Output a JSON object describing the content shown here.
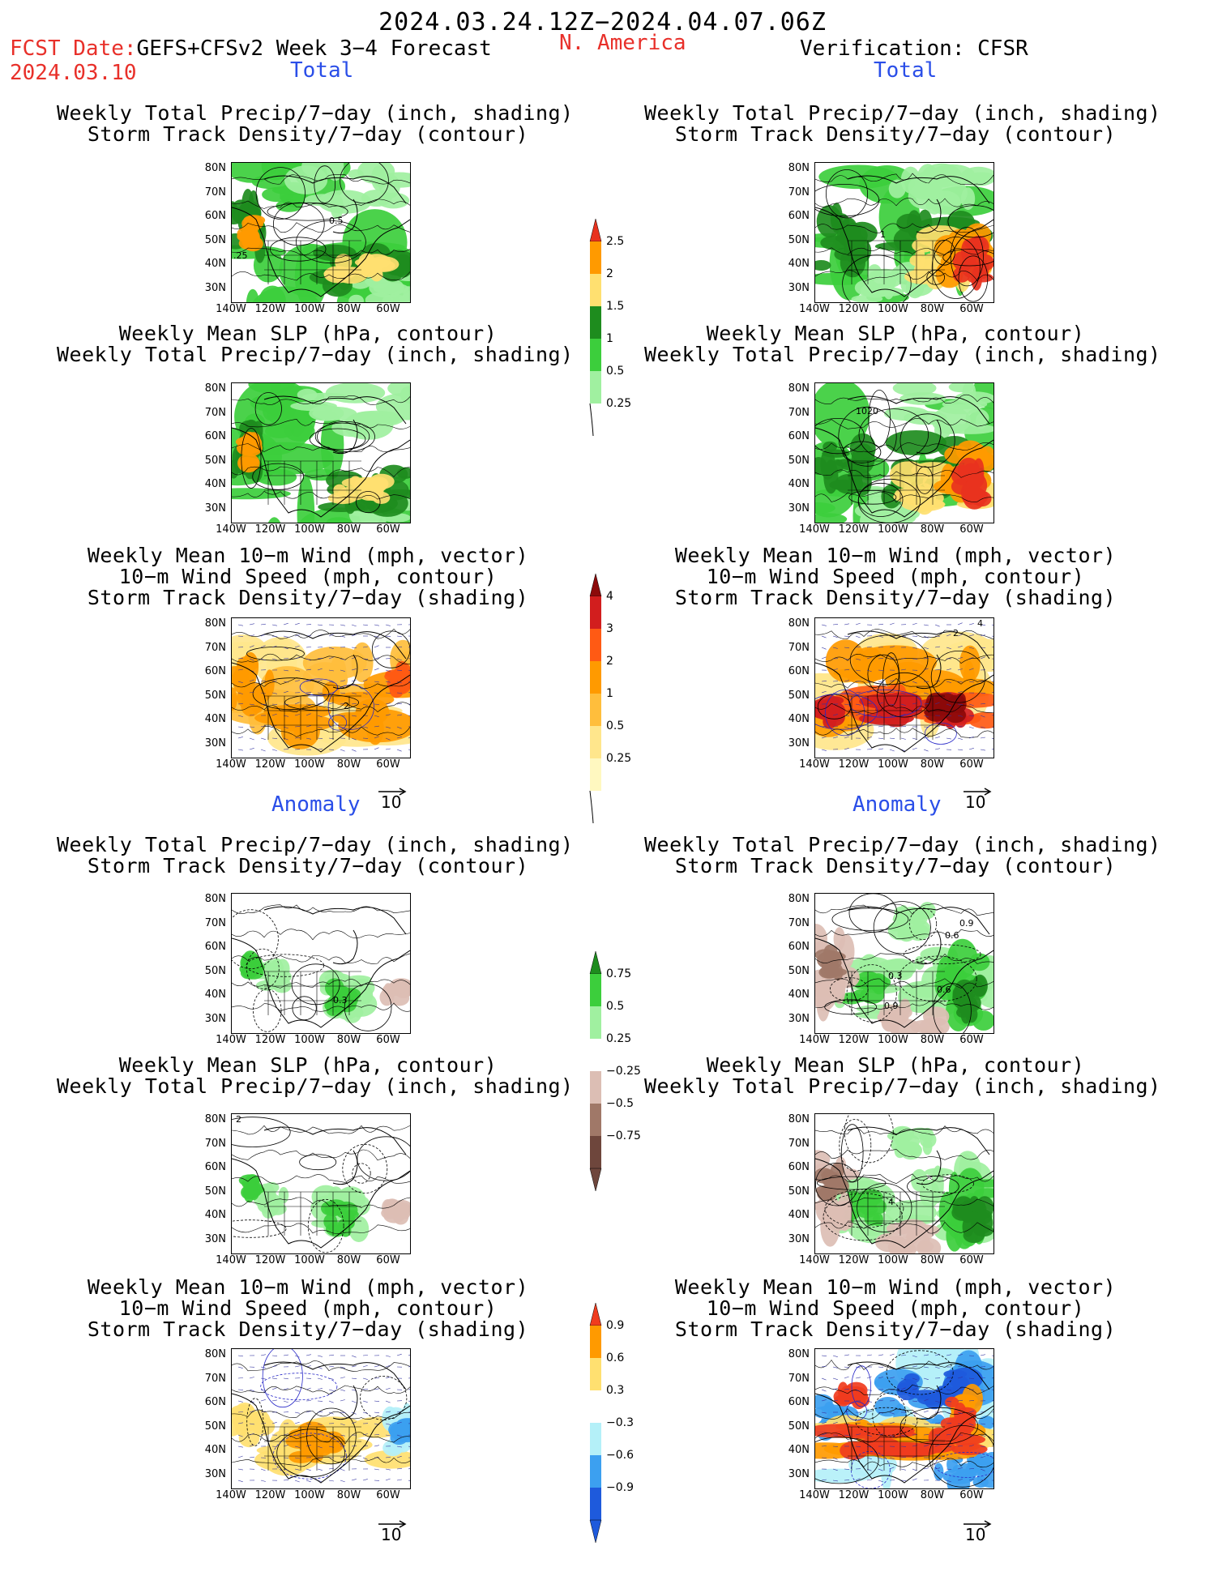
{
  "header": {
    "period": "2024.03.24.12Z−2024.04.07.06Z",
    "fcst_date_label": "FCST Date:",
    "fcst_date": "2024.03.10",
    "model_title": "GEFS+CFSv2 Week 3−4 Forecast",
    "region": "N. America",
    "verification": "Verification: CFSR"
  },
  "sections": {
    "total": "Total",
    "anomaly": "Anomaly"
  },
  "titles": {
    "precip_storm": [
      "Weekly Total Precip/7−day (inch, shading)",
      "Storm Track Density/7−day (contour)"
    ],
    "slp_precip": [
      "Weekly Mean SLP (hPa, contour)",
      "Weekly Total Precip/7−day (inch, shading)"
    ],
    "wind_storm": [
      "Weekly Mean 10−m Wind (mph, vector)",
      "10−m Wind Speed (mph, contour)",
      "Storm Track Density/7−day (shading)"
    ]
  },
  "axes": {
    "lat_ticks": [
      "80N",
      "70N",
      "60N",
      "50N",
      "40N",
      "30N"
    ],
    "lon_ticks": [
      "140W",
      "120W",
      "100W",
      "80W",
      "60W"
    ]
  },
  "vector_ref": "10",
  "colorbars": {
    "total_precip": {
      "labels": [
        "2.5",
        "2",
        "1.5",
        "1",
        "0.5",
        "0.25"
      ],
      "colors": [
        "#e8321e",
        "#ff9a00",
        "#ffe070",
        "#1e8c1e",
        "#3cce3c",
        "#a0f0a0"
      ]
    },
    "total_storm": {
      "labels": [
        "4",
        "3",
        "2",
        "1",
        "0.5",
        "0.25"
      ],
      "colors": [
        "#8c0a0a",
        "#d21e1e",
        "#ff5a14",
        "#ff9a00",
        "#ffbe3c",
        "#ffe68c",
        "#fff8c0"
      ]
    },
    "anom_precip": {
      "labels": [
        "0.75",
        "0.5",
        "0.25",
        "−0.25",
        "−0.5",
        "−0.75"
      ],
      "colors": [
        "#1e8c1e",
        "#3cce3c",
        "#a0f0a0",
        "#ffffff",
        "#dcbeb4",
        "#a07868",
        "#6e463c"
      ]
    },
    "anom_storm": {
      "labels": [
        "0.9",
        "0.6",
        "0.3",
        "−0.3",
        "−0.6",
        "−0.9"
      ],
      "colors": [
        "#f03c1e",
        "#ff9a00",
        "#ffe070",
        "#ffffff",
        "#b4f0f8",
        "#3ca0f0",
        "#1e5adc"
      ]
    }
  },
  "map_labels": {
    "p1_a": "0.5",
    "p1_b": ".25",
    "p2_a": "1",
    "p4_a": "1020",
    "p5_a": "2",
    "p6_a": "4",
    "p6_b": "2",
    "p7_a": "0.3",
    "p8_a": "0.9",
    "p8_b": "0.6",
    "p8_c": "0.3",
    "p8_d": "0.6",
    "p8_e": "0.9",
    "p9_a": "2",
    "p10_a": "4"
  }
}
